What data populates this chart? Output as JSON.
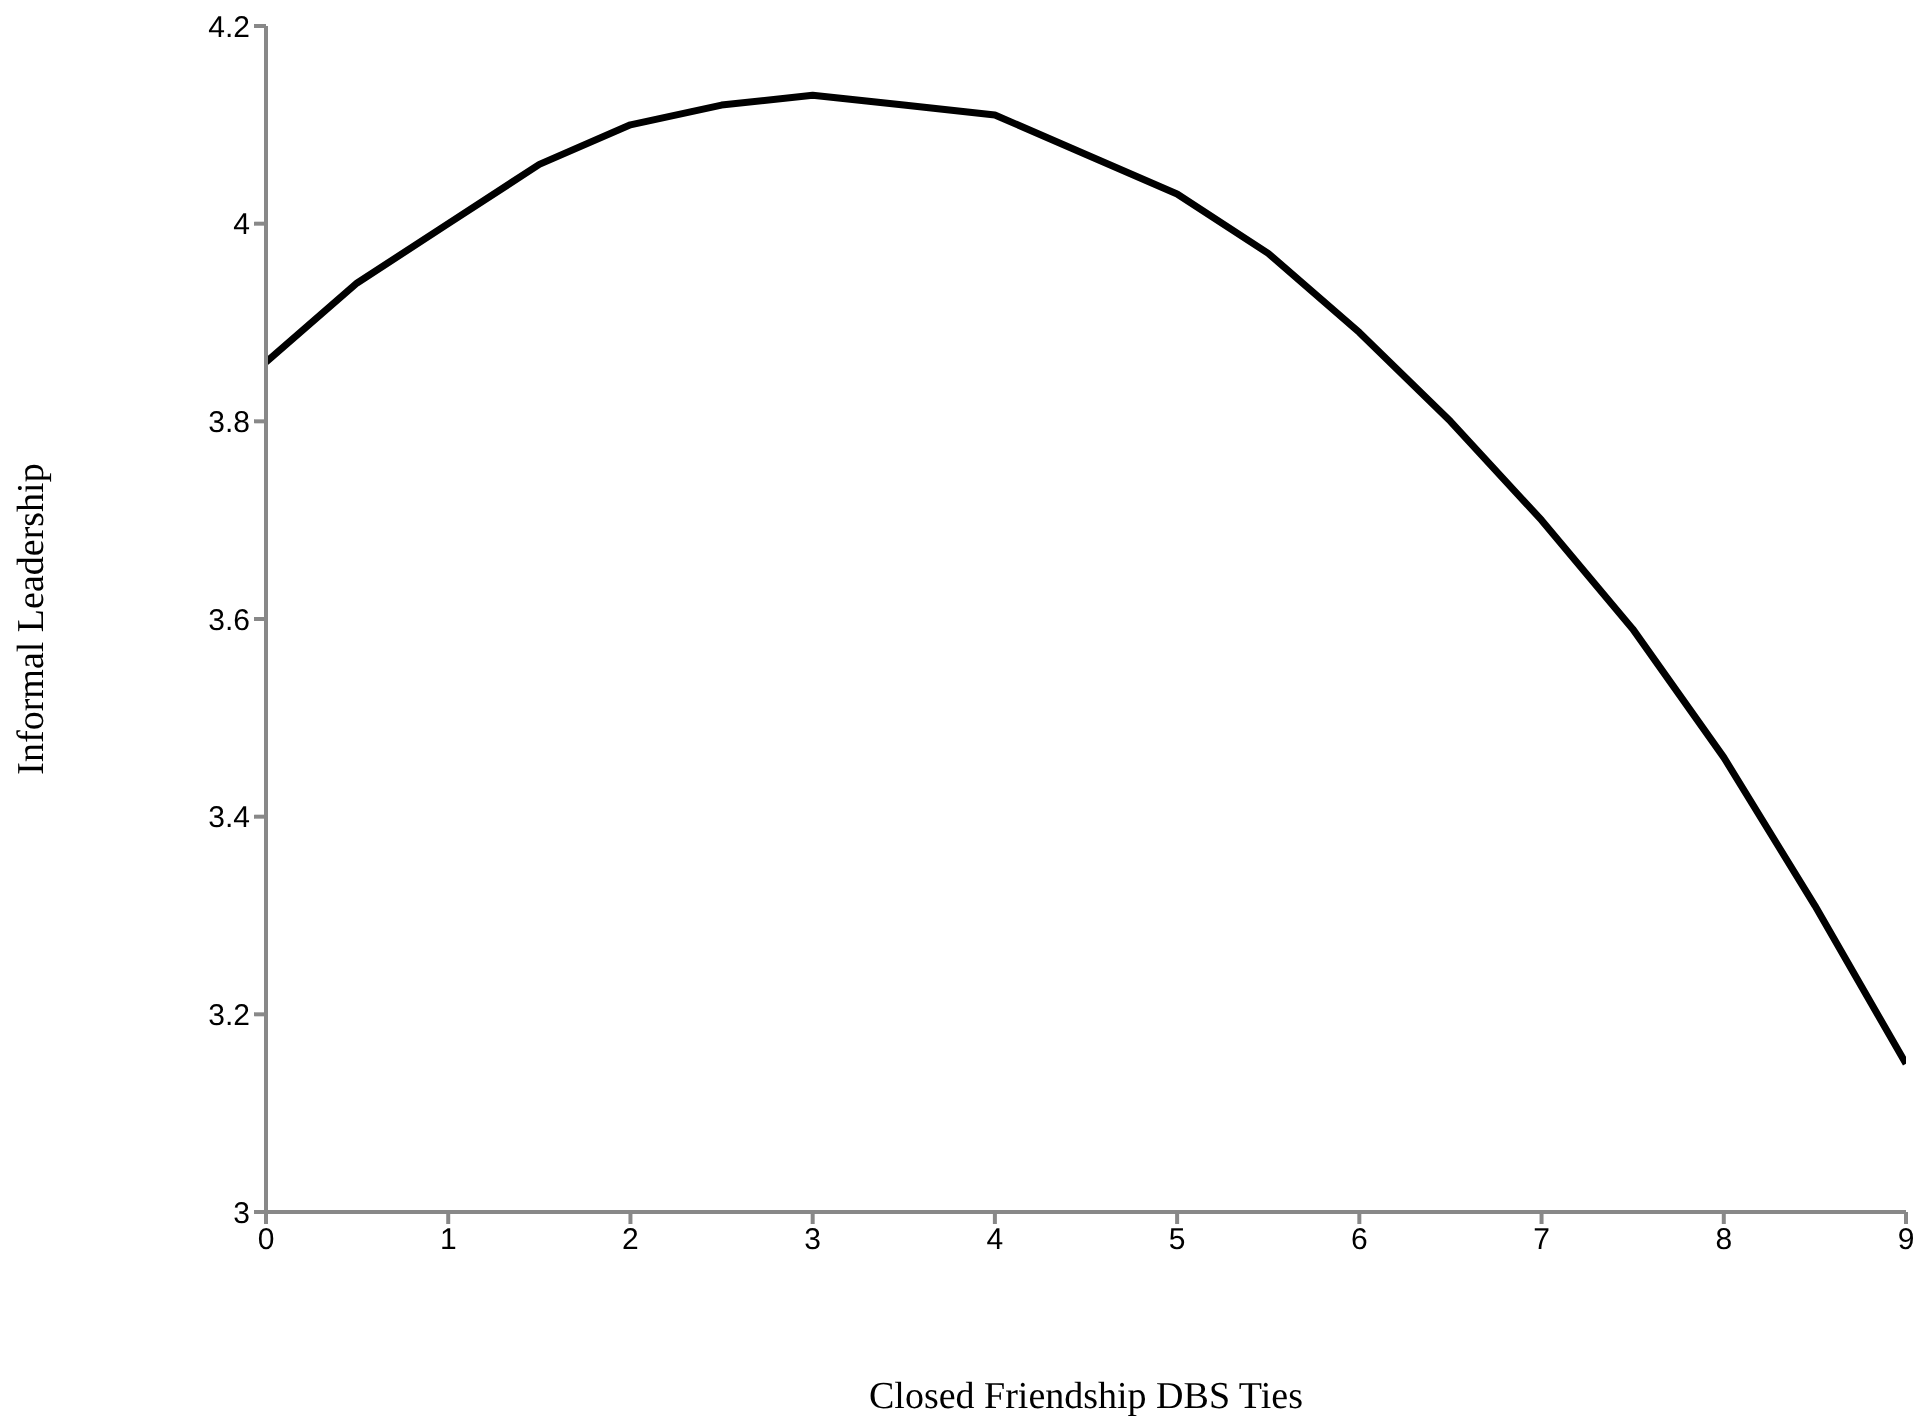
{
  "chart_data": {
    "type": "line",
    "xlabel": "Closed Friendship DBS Ties",
    "ylabel": "Informal Leadership",
    "x": [
      0,
      0.5,
      1,
      1.5,
      2,
      2.5,
      3,
      3.5,
      4,
      4.5,
      5,
      5.5,
      6,
      6.5,
      7,
      7.5,
      8,
      8.5,
      9
    ],
    "series": [
      {
        "color": "#000000",
        "values": [
          3.86,
          3.94,
          4.0,
          4.06,
          4.1,
          4.12,
          4.13,
          4.12,
          4.11,
          4.07,
          4.03,
          3.97,
          3.89,
          3.8,
          3.7,
          3.59,
          3.46,
          3.31,
          3.15
        ]
      }
    ],
    "xlim": [
      0,
      9
    ],
    "xticks": [
      0,
      1,
      2,
      3,
      4,
      5,
      6,
      7,
      8,
      9
    ],
    "ylim": [
      3,
      4.2
    ],
    "yticks": [
      3,
      3.2,
      3.4,
      3.6,
      3.8,
      4,
      4.2
    ],
    "grid": false,
    "legend": false,
    "marker": "none",
    "line_style": "solid"
  }
}
